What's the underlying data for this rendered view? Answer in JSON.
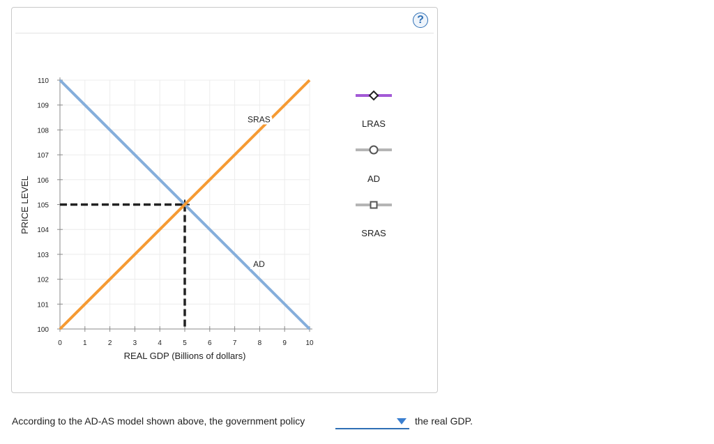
{
  "panel": {
    "help_symbol": "?"
  },
  "chart_data": {
    "type": "line",
    "xlabel": "REAL GDP (Billions of dollars)",
    "ylabel": "PRICE LEVEL",
    "xlim": [
      0,
      10
    ],
    "ylim": [
      100,
      110
    ],
    "x_ticks": [
      0,
      1,
      2,
      3,
      4,
      5,
      6,
      7,
      8,
      9,
      10
    ],
    "y_ticks": [
      100,
      101,
      102,
      103,
      104,
      105,
      106,
      107,
      108,
      109,
      110
    ],
    "grid": true,
    "series": [
      {
        "name": "AD",
        "label": "AD",
        "color": "#85aedb",
        "points": [
          [
            0,
            110
          ],
          [
            10,
            100
          ]
        ]
      },
      {
        "name": "SRAS",
        "label": "SRAS",
        "color": "#f59a33",
        "points": [
          [
            0,
            100
          ],
          [
            10,
            110
          ]
        ]
      }
    ],
    "series_labels": [
      {
        "text": "SRAS",
        "x": 8.0,
        "y": 108.3
      },
      {
        "text": "AD",
        "x": 8.0,
        "y": 102.5
      }
    ],
    "equilibrium": {
      "x": 5,
      "y": 105
    },
    "legend": {
      "placement": "right",
      "items": [
        {
          "label": "LRAS",
          "color": "#a35ad6",
          "marker": "diamond"
        },
        {
          "label": "AD",
          "color": "#b5b5b5",
          "marker": "circle"
        },
        {
          "label": "SRAS",
          "color": "#b5b5b5",
          "marker": "square"
        }
      ]
    }
  },
  "question": {
    "text": "According to the AD-AS model shown above, the government policy",
    "dropdown_value": "",
    "tail": "the real GDP."
  }
}
